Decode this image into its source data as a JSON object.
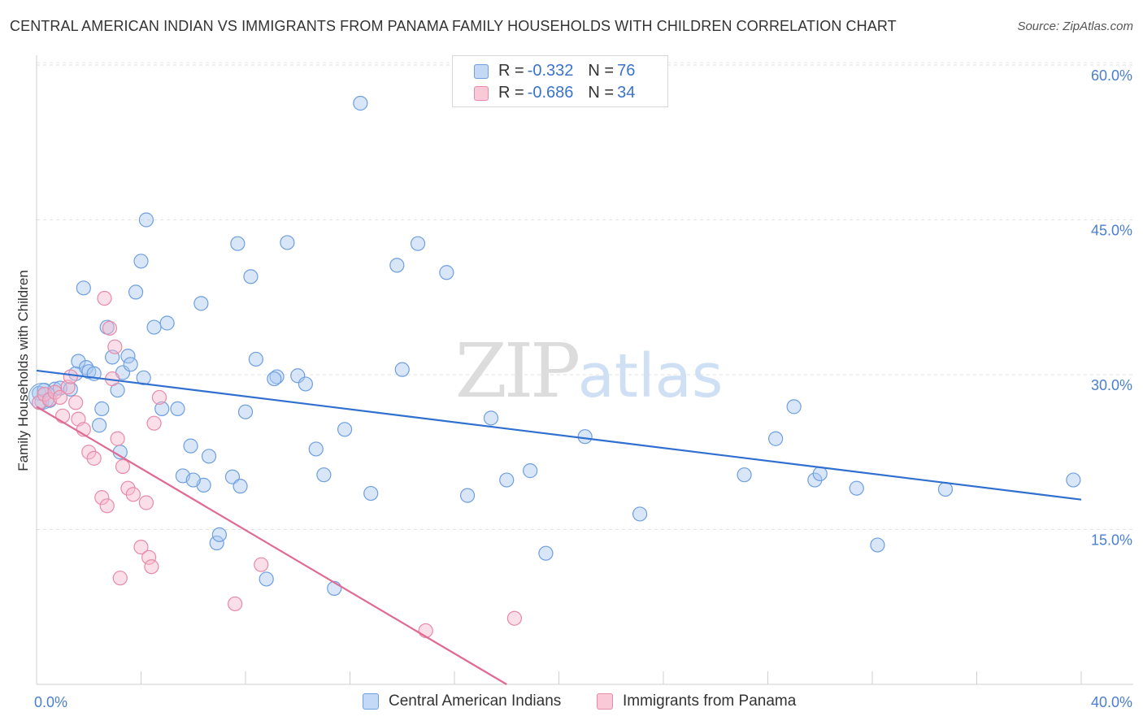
{
  "header": {
    "title": "CENTRAL AMERICAN INDIAN VS IMMIGRANTS FROM PANAMA FAMILY HOUSEHOLDS WITH CHILDREN CORRELATION CHART",
    "source": "Source: ZipAtlas.com"
  },
  "watermark": {
    "zip": "ZIP",
    "atlas": "atlas"
  },
  "legend": {
    "rows": [
      {
        "r_label": "R =",
        "r_value": "-0.332",
        "n_label": "N =",
        "n_value": "76"
      },
      {
        "r_label": "R =",
        "r_value": "-0.686",
        "n_label": "N =",
        "n_value": "34"
      }
    ]
  },
  "colors": {
    "blue_fill": "#a9c8f0",
    "blue_stroke": "#6e9fe0",
    "blue_line": "#2f6fd0",
    "pink_fill": "#f7b8cc",
    "pink_stroke": "#e88aa8",
    "pink_line": "#e06a94"
  },
  "chart_data": {
    "type": "scatter",
    "title": "CENTRAL AMERICAN INDIAN VS IMMIGRANTS FROM PANAMA FAMILY HOUSEHOLDS WITH CHILDREN CORRELATION CHART",
    "xlabel": "",
    "ylabel": "Family Households with Children",
    "xlim": [
      0,
      40
    ],
    "ylim": [
      0,
      60
    ],
    "x_tick_labels": [
      "0.0%",
      "40.0%"
    ],
    "y_ticks": [
      15,
      30,
      45,
      60
    ],
    "y_tick_labels": [
      "15.0%",
      "30.0%",
      "45.0%",
      "60.0%"
    ],
    "grid": true,
    "legend_position": "bottom",
    "series": [
      {
        "name": "Central American Indians",
        "r": -0.332,
        "n": 76,
        "trend": {
          "x": [
            0,
            40
          ],
          "y": [
            30.4,
            17.9
          ]
        },
        "points": [
          [
            0.1,
            28.2
          ],
          [
            0.2,
            27.4
          ],
          [
            0.3,
            28.5
          ],
          [
            0.5,
            27.5
          ],
          [
            0.7,
            28.6
          ],
          [
            0.9,
            28.7
          ],
          [
            1.3,
            28.6
          ],
          [
            1.5,
            30.1
          ],
          [
            1.6,
            31.3
          ],
          [
            1.8,
            38.4
          ],
          [
            1.9,
            30.7
          ],
          [
            2.0,
            30.3
          ],
          [
            2.2,
            30.1
          ],
          [
            2.4,
            25.1
          ],
          [
            2.5,
            26.7
          ],
          [
            2.7,
            34.6
          ],
          [
            2.9,
            31.7
          ],
          [
            3.1,
            28.5
          ],
          [
            3.3,
            30.2
          ],
          [
            3.5,
            31.8
          ],
          [
            3.6,
            31.0
          ],
          [
            3.8,
            38.0
          ],
          [
            4.0,
            41.0
          ],
          [
            4.2,
            45.0
          ],
          [
            4.5,
            34.6
          ],
          [
            4.8,
            26.7
          ],
          [
            5.0,
            35.0
          ],
          [
            5.4,
            26.7
          ],
          [
            5.6,
            20.2
          ],
          [
            5.9,
            23.1
          ],
          [
            6.3,
            36.9
          ],
          [
            6.4,
            19.3
          ],
          [
            6.6,
            22.1
          ],
          [
            6.9,
            13.7
          ],
          [
            7.0,
            14.5
          ],
          [
            7.5,
            20.1
          ],
          [
            7.7,
            42.7
          ],
          [
            7.8,
            19.2
          ],
          [
            8.0,
            26.4
          ],
          [
            8.2,
            39.5
          ],
          [
            8.4,
            31.5
          ],
          [
            8.8,
            10.2
          ],
          [
            9.2,
            29.8
          ],
          [
            9.6,
            42.8
          ],
          [
            10.0,
            29.9
          ],
          [
            10.3,
            29.1
          ],
          [
            10.7,
            22.8
          ],
          [
            11.0,
            20.3
          ],
          [
            11.4,
            9.3
          ],
          [
            11.8,
            24.7
          ],
          [
            12.4,
            56.3
          ],
          [
            12.8,
            18.5
          ],
          [
            13.8,
            40.6
          ],
          [
            14.6,
            42.7
          ],
          [
            15.7,
            39.9
          ],
          [
            16.5,
            18.3
          ],
          [
            17.4,
            25.8
          ],
          [
            18.0,
            19.8
          ],
          [
            18.9,
            20.7
          ],
          [
            19.5,
            12.7
          ],
          [
            23.1,
            16.5
          ],
          [
            27.1,
            20.3
          ],
          [
            28.3,
            23.8
          ],
          [
            29.0,
            26.9
          ],
          [
            29.8,
            19.8
          ],
          [
            30.0,
            20.4
          ],
          [
            31.4,
            19.0
          ],
          [
            32.2,
            13.5
          ],
          [
            34.8,
            18.9
          ],
          [
            39.7,
            19.8
          ],
          [
            4.1,
            29.7
          ],
          [
            9.1,
            29.6
          ],
          [
            14.0,
            30.5
          ],
          [
            21.0,
            24.0
          ],
          [
            3.2,
            22.5
          ],
          [
            6.0,
            19.8
          ]
        ]
      },
      {
        "name": "Immigrants from Panama",
        "r": -0.686,
        "n": 34,
        "trend": {
          "x": [
            0,
            18.0
          ],
          "y": [
            26.9,
            0
          ]
        },
        "points": [
          [
            0.1,
            27.3
          ],
          [
            0.3,
            28.1
          ],
          [
            0.5,
            27.6
          ],
          [
            0.7,
            28.3
          ],
          [
            0.9,
            27.8
          ],
          [
            1.0,
            26.0
          ],
          [
            1.2,
            28.8
          ],
          [
            1.3,
            29.8
          ],
          [
            1.5,
            27.3
          ],
          [
            1.6,
            25.7
          ],
          [
            1.8,
            24.7
          ],
          [
            2.0,
            22.5
          ],
          [
            2.2,
            21.9
          ],
          [
            2.5,
            18.1
          ],
          [
            2.7,
            17.3
          ],
          [
            2.9,
            29.6
          ],
          [
            3.1,
            23.8
          ],
          [
            3.3,
            21.1
          ],
          [
            3.5,
            19.0
          ],
          [
            3.7,
            18.4
          ],
          [
            4.2,
            17.6
          ],
          [
            4.5,
            25.3
          ],
          [
            4.7,
            27.8
          ],
          [
            2.6,
            37.4
          ],
          [
            2.8,
            34.5
          ],
          [
            3.0,
            32.7
          ],
          [
            4.0,
            13.3
          ],
          [
            4.3,
            12.3
          ],
          [
            4.4,
            11.4
          ],
          [
            3.2,
            10.3
          ],
          [
            7.6,
            7.8
          ],
          [
            8.6,
            11.6
          ],
          [
            14.9,
            5.2
          ],
          [
            18.3,
            6.4
          ]
        ]
      }
    ]
  }
}
